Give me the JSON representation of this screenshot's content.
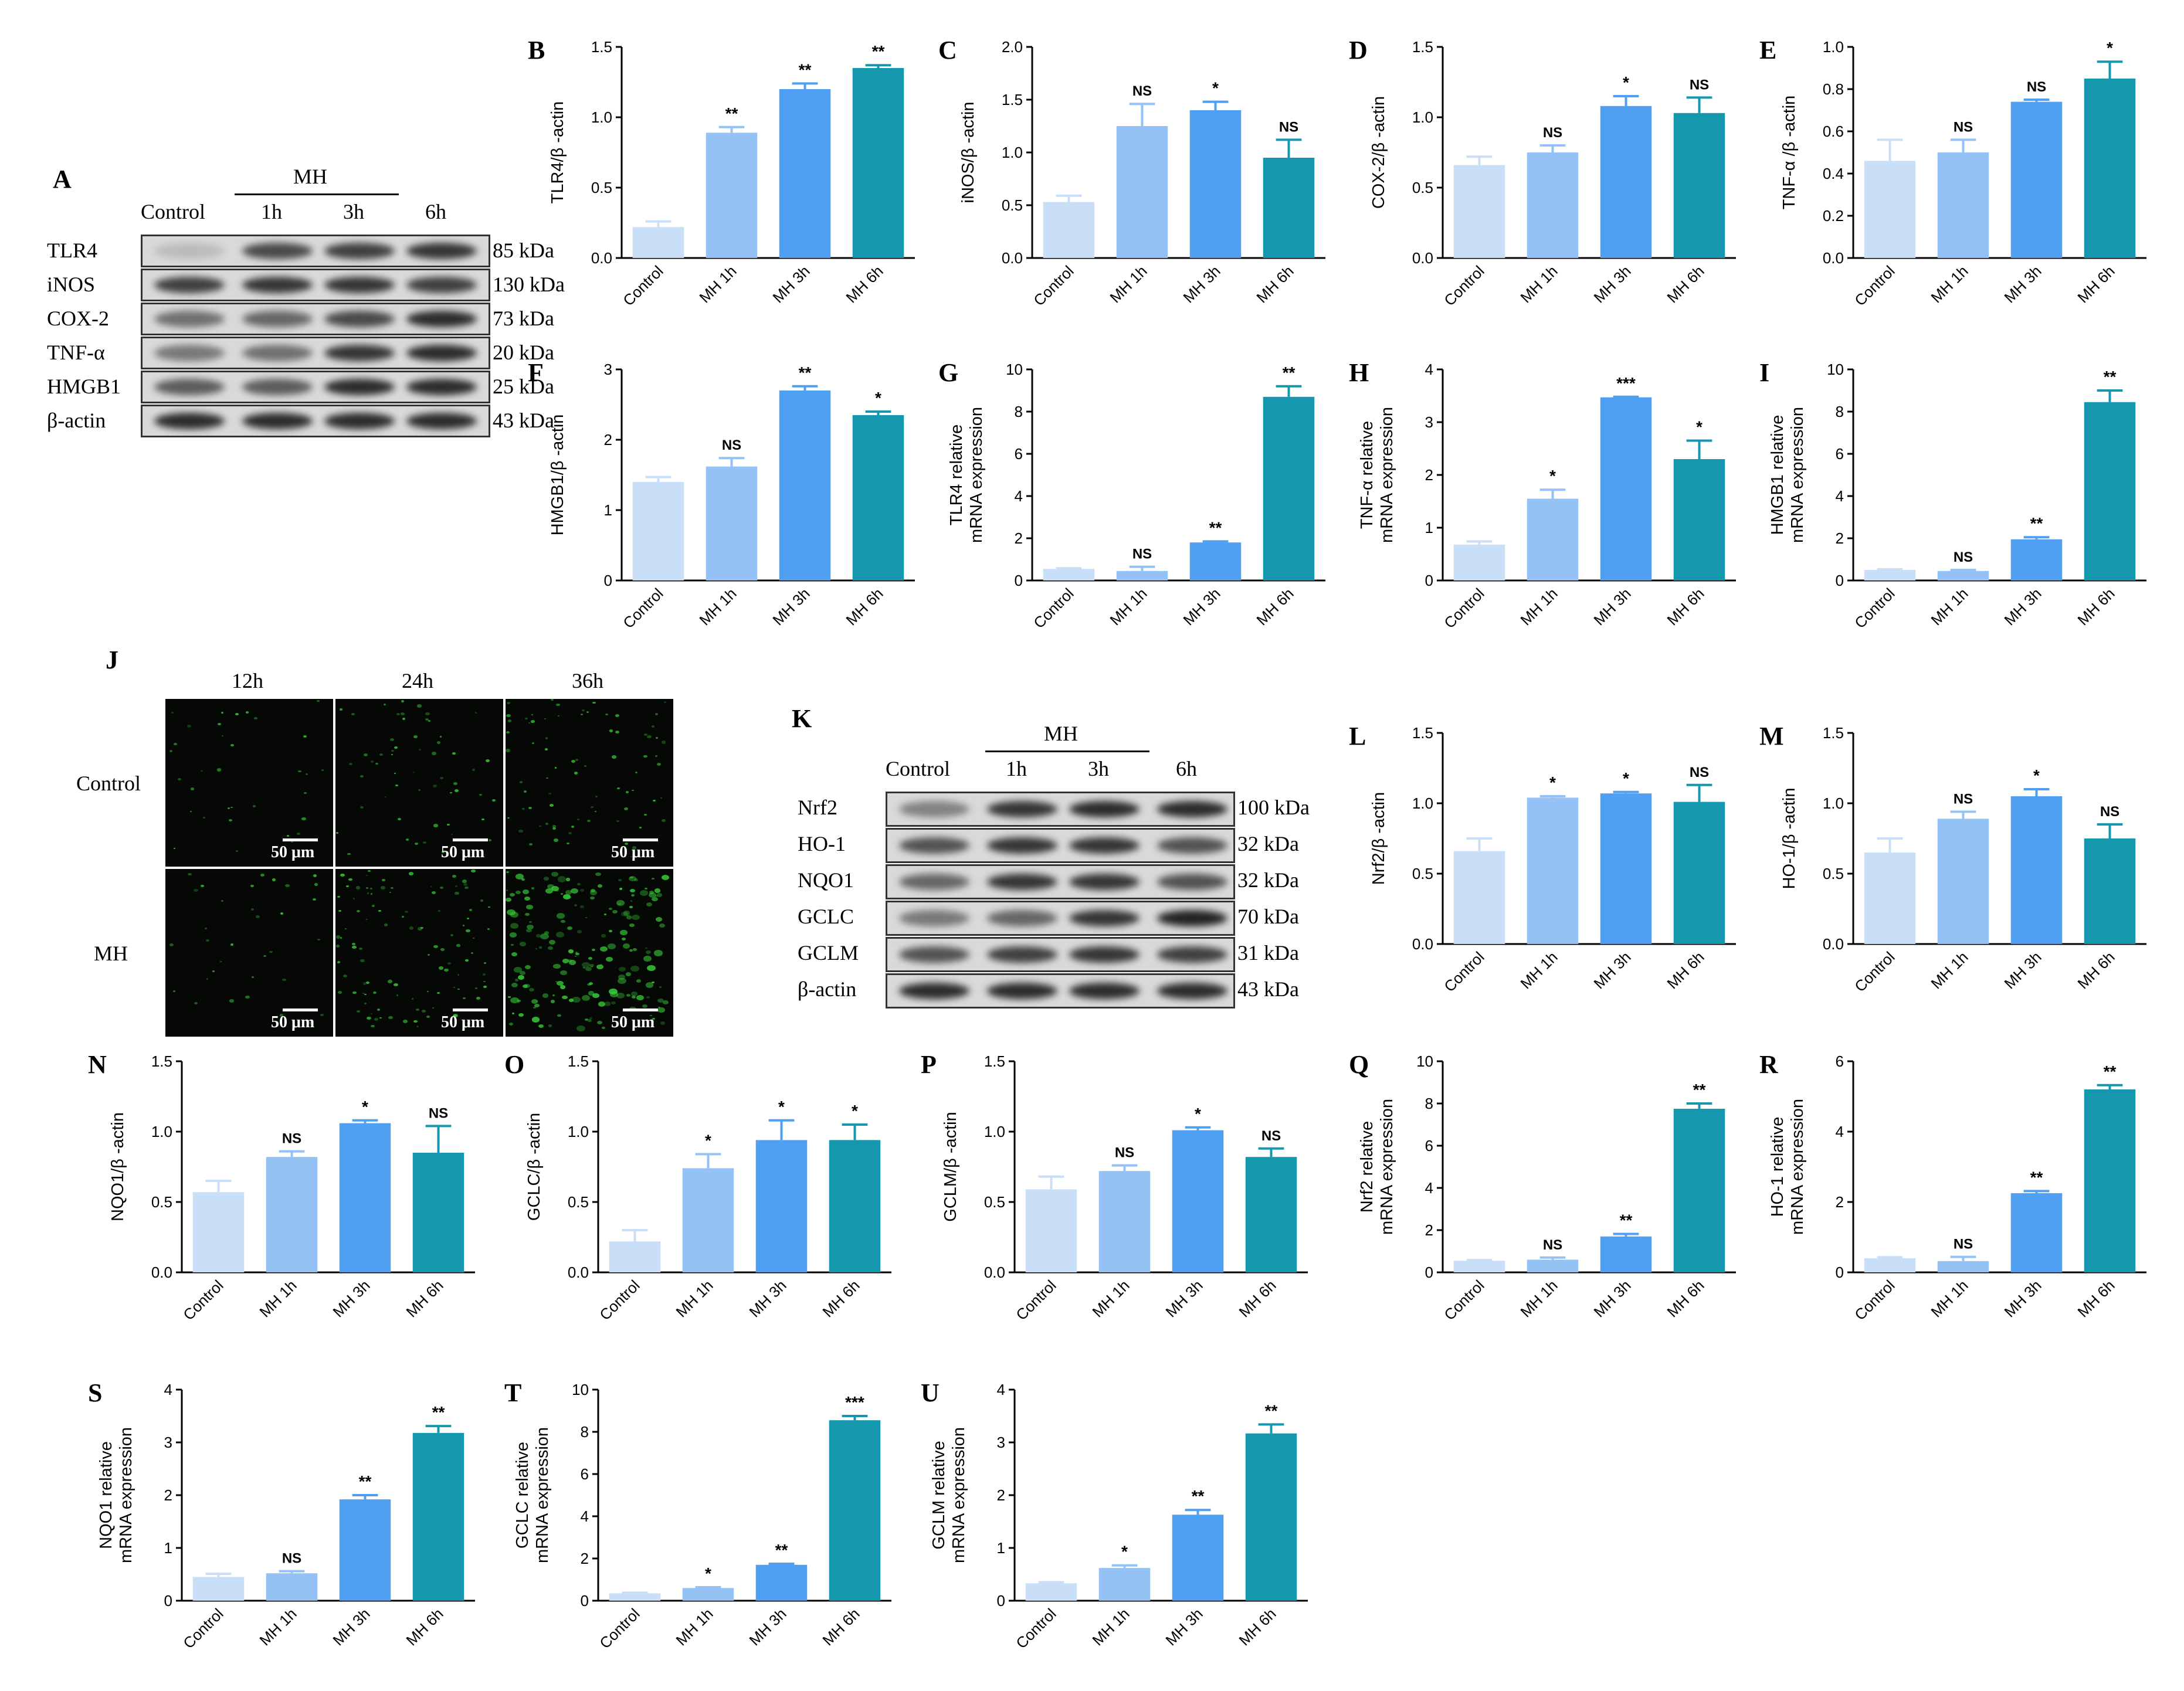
{
  "colors": {
    "control": "#c9dff7",
    "mh1": "#94c2f5",
    "mh3": "#4f9ff2",
    "mh6": "#1597ae"
  },
  "blotA": {
    "label": "A",
    "group_label": "MH",
    "lanes": [
      "Control",
      "1h",
      "3h",
      "6h"
    ],
    "rows": [
      {
        "name": "TLR4",
        "kda": "85 kDa",
        "intensity": [
          0.15,
          0.75,
          0.8,
          0.85
        ]
      },
      {
        "name": "iNOS",
        "kda": "130 kDa",
        "intensity": [
          0.8,
          0.85,
          0.85,
          0.8
        ]
      },
      {
        "name": "COX-2",
        "kda": "73 kDa",
        "intensity": [
          0.55,
          0.6,
          0.75,
          0.9
        ]
      },
      {
        "name": "TNF-α",
        "kda": "20 kDa",
        "intensity": [
          0.5,
          0.55,
          0.85,
          0.9
        ]
      },
      {
        "name": "HMGB1",
        "kda": "25 kDa",
        "intensity": [
          0.65,
          0.65,
          0.9,
          0.9
        ]
      },
      {
        "name": "β-actin",
        "kda": "43 kDa",
        "intensity": [
          0.9,
          0.9,
          0.9,
          0.9
        ]
      }
    ]
  },
  "blotK": {
    "label": "K",
    "group_label": "MH",
    "lanes": [
      "Control",
      "1h",
      "3h",
      "6h"
    ],
    "rows": [
      {
        "name": "Nrf2",
        "kda": "100 kDa",
        "intensity": [
          0.45,
          0.85,
          0.9,
          0.9
        ]
      },
      {
        "name": "HO-1",
        "kda": "32 kDa",
        "intensity": [
          0.7,
          0.85,
          0.85,
          0.7
        ]
      },
      {
        "name": "NQO1",
        "kda": "32 kDa",
        "intensity": [
          0.6,
          0.85,
          0.85,
          0.7
        ]
      },
      {
        "name": "GCLC",
        "kda": "70 kDa",
        "intensity": [
          0.5,
          0.6,
          0.85,
          0.95
        ]
      },
      {
        "name": "GCLM",
        "kda": "31 kDa",
        "intensity": [
          0.7,
          0.8,
          0.85,
          0.8
        ]
      },
      {
        "name": "β-actin",
        "kda": "43 kDa",
        "intensity": [
          0.9,
          0.9,
          0.9,
          0.9
        ]
      }
    ]
  },
  "microJ": {
    "label": "J",
    "columns": [
      "12h",
      "24h",
      "36h"
    ],
    "rows": [
      "Control",
      "MH"
    ],
    "scale": "50 μm",
    "density": [
      [
        0.15,
        0.25,
        0.35
      ],
      [
        0.15,
        0.5,
        0.9
      ]
    ]
  },
  "chart_data": [
    {
      "label": "B",
      "type": "bar",
      "ylabel": [
        "TLR4/β -actin"
      ],
      "ylim": [
        0,
        1.5
      ],
      "ticks": [
        "0.0",
        "0.5",
        "1.0",
        "1.5"
      ],
      "categories": [
        "Control",
        "MH 1h",
        "MH 3h",
        "MH 6h"
      ],
      "values": [
        0.22,
        0.89,
        1.2,
        1.35
      ],
      "errors": [
        0.04,
        0.04,
        0.04,
        0.02
      ],
      "sig": [
        "",
        "**",
        "**",
        "**"
      ]
    },
    {
      "label": "C",
      "type": "bar",
      "ylabel": [
        "iNOS/β -actin"
      ],
      "ylim": [
        0,
        2.0
      ],
      "ticks": [
        "0.0",
        "0.5",
        "1.0",
        "1.5",
        "2.0"
      ],
      "categories": [
        "Control",
        "MH 1h",
        "MH 3h",
        "MH 6h"
      ],
      "values": [
        0.53,
        1.25,
        1.4,
        0.95
      ],
      "errors": [
        0.06,
        0.21,
        0.08,
        0.17
      ],
      "sig": [
        "",
        "NS",
        "*",
        "NS"
      ]
    },
    {
      "label": "D",
      "type": "bar",
      "ylabel": [
        "COX-2/β -actin"
      ],
      "ylim": [
        0,
        1.5
      ],
      "ticks": [
        "0.0",
        "0.5",
        "1.0",
        "1.5"
      ],
      "categories": [
        "Control",
        "MH 1h",
        "MH 3h",
        "MH 6h"
      ],
      "values": [
        0.66,
        0.75,
        1.08,
        1.03
      ],
      "errors": [
        0.06,
        0.05,
        0.07,
        0.11
      ],
      "sig": [
        "",
        "NS",
        "*",
        "NS"
      ]
    },
    {
      "label": "E",
      "type": "bar",
      "ylabel": [
        "TNF-α /β -actin"
      ],
      "ylim": [
        0,
        1.0
      ],
      "ticks": [
        "0.0",
        "0.2",
        "0.4",
        "0.6",
        "0.8",
        "1.0"
      ],
      "categories": [
        "Control",
        "MH 1h",
        "MH 3h",
        "MH 6h"
      ],
      "values": [
        0.46,
        0.5,
        0.74,
        0.85
      ],
      "errors": [
        0.1,
        0.06,
        0.01,
        0.08
      ],
      "sig": [
        "",
        "NS",
        "NS",
        "*"
      ]
    },
    {
      "label": "F",
      "type": "bar",
      "ylabel": [
        "HMGB1/β -actin"
      ],
      "ylim": [
        0,
        3
      ],
      "ticks": [
        "0",
        "1",
        "2",
        "3"
      ],
      "categories": [
        "Control",
        "MH 1h",
        "MH 3h",
        "MH 6h"
      ],
      "values": [
        1.4,
        1.62,
        2.7,
        2.35
      ],
      "errors": [
        0.07,
        0.12,
        0.06,
        0.05
      ],
      "sig": [
        "",
        "NS",
        "**",
        "*"
      ]
    },
    {
      "label": "G",
      "type": "bar",
      "ylabel": [
        "TLR4 relative",
        "mRNA expression"
      ],
      "ylim": [
        0,
        10
      ],
      "ticks": [
        "0",
        "2",
        "4",
        "6",
        "8",
        "10"
      ],
      "categories": [
        "Control",
        "MH 1h",
        "MH 3h",
        "MH 6h"
      ],
      "values": [
        0.55,
        0.45,
        1.8,
        8.7
      ],
      "errors": [
        0.03,
        0.2,
        0.05,
        0.5
      ],
      "sig": [
        "",
        "NS",
        "**",
        "**"
      ]
    },
    {
      "label": "H",
      "type": "bar",
      "ylabel": [
        "TNF-α relative",
        "mRNA expression"
      ],
      "ylim": [
        0,
        4
      ],
      "ticks": [
        "0",
        "1",
        "2",
        "3",
        "4"
      ],
      "categories": [
        "Control",
        "MH 1h",
        "MH 3h",
        "MH 6h"
      ],
      "values": [
        0.68,
        1.55,
        3.47,
        2.3
      ],
      "errors": [
        0.06,
        0.17,
        0.01,
        0.35
      ],
      "sig": [
        "",
        "*",
        "***",
        "*"
      ]
    },
    {
      "label": "I",
      "type": "bar",
      "ylabel": [
        "HMGB1 relative",
        "mRNA expression"
      ],
      "ylim": [
        0,
        10
      ],
      "ticks": [
        "0",
        "2",
        "4",
        "6",
        "8",
        "10"
      ],
      "categories": [
        "Control",
        "MH 1h",
        "MH 3h",
        "MH 6h"
      ],
      "values": [
        0.5,
        0.45,
        1.95,
        8.45
      ],
      "errors": [
        0.03,
        0.05,
        0.1,
        0.55
      ],
      "sig": [
        "",
        "NS",
        "**",
        "**"
      ]
    },
    {
      "label": "L",
      "type": "bar",
      "ylabel": [
        "Nrf2/β -actin"
      ],
      "ylim": [
        0,
        1.5
      ],
      "ticks": [
        "0.0",
        "0.5",
        "1.0",
        "1.5"
      ],
      "categories": [
        "Control",
        "MH 1h",
        "MH 3h",
        "MH 6h"
      ],
      "values": [
        0.66,
        1.04,
        1.07,
        1.01
      ],
      "errors": [
        0.09,
        0.01,
        0.01,
        0.12
      ],
      "sig": [
        "",
        "*",
        "*",
        "NS"
      ]
    },
    {
      "label": "M",
      "type": "bar",
      "ylabel": [
        "HO-1/β -actin"
      ],
      "ylim": [
        0,
        1.5
      ],
      "ticks": [
        "0.0",
        "0.5",
        "1.0",
        "1.5"
      ],
      "categories": [
        "Control",
        "MH 1h",
        "MH 3h",
        "MH 6h"
      ],
      "values": [
        0.65,
        0.89,
        1.05,
        0.75
      ],
      "errors": [
        0.1,
        0.05,
        0.05,
        0.1
      ],
      "sig": [
        "",
        "NS",
        "*",
        "NS"
      ]
    },
    {
      "label": "N",
      "type": "bar",
      "ylabel": [
        "NQO1/β -actin"
      ],
      "ylim": [
        0,
        1.5
      ],
      "ticks": [
        "0.0",
        "0.5",
        "1.0",
        "1.5"
      ],
      "categories": [
        "Control",
        "MH 1h",
        "MH 3h",
        "MH 6h"
      ],
      "values": [
        0.57,
        0.82,
        1.06,
        0.85
      ],
      "errors": [
        0.08,
        0.04,
        0.02,
        0.19
      ],
      "sig": [
        "",
        "NS",
        "*",
        "NS"
      ]
    },
    {
      "label": "O",
      "type": "bar",
      "ylabel": [
        "GCLC/β -actin"
      ],
      "ylim": [
        0,
        1.5
      ],
      "ticks": [
        "0.0",
        "0.5",
        "1.0",
        "1.5"
      ],
      "categories": [
        "Control",
        "MH 1h",
        "MH 3h",
        "MH 6h"
      ],
      "values": [
        0.22,
        0.74,
        0.94,
        0.94
      ],
      "errors": [
        0.08,
        0.1,
        0.14,
        0.11
      ],
      "sig": [
        "",
        "*",
        "*",
        "*"
      ]
    },
    {
      "label": "P",
      "type": "bar",
      "ylabel": [
        "GCLM/β -actin"
      ],
      "ylim": [
        0,
        1.5
      ],
      "ticks": [
        "0.0",
        "0.5",
        "1.0",
        "1.5"
      ],
      "categories": [
        "Control",
        "MH 1h",
        "MH 3h",
        "MH 6h"
      ],
      "values": [
        0.59,
        0.72,
        1.01,
        0.82
      ],
      "errors": [
        0.09,
        0.04,
        0.02,
        0.06
      ],
      "sig": [
        "",
        "NS",
        "*",
        "NS"
      ]
    },
    {
      "label": "Q",
      "type": "bar",
      "ylabel": [
        "Nrf2 relative",
        "mRNA expression"
      ],
      "ylim": [
        0,
        10
      ],
      "ticks": [
        "0",
        "2",
        "4",
        "6",
        "8",
        "10"
      ],
      "categories": [
        "Control",
        "MH 1h",
        "MH 3h",
        "MH 6h"
      ],
      "values": [
        0.55,
        0.6,
        1.7,
        7.75
      ],
      "errors": [
        0.03,
        0.1,
        0.12,
        0.25
      ],
      "sig": [
        "",
        "NS",
        "**",
        "**"
      ]
    },
    {
      "label": "R",
      "type": "bar",
      "ylabel": [
        "HO-1 relative",
        "mRNA expression"
      ],
      "ylim": [
        0,
        6
      ],
      "ticks": [
        "0",
        "2",
        "4",
        "6"
      ],
      "categories": [
        "Control",
        "MH 1h",
        "MH 3h",
        "MH 6h"
      ],
      "values": [
        0.4,
        0.32,
        2.25,
        5.2
      ],
      "errors": [
        0.03,
        0.12,
        0.06,
        0.12
      ],
      "sig": [
        "",
        "NS",
        "**",
        "**"
      ]
    },
    {
      "label": "S",
      "type": "bar",
      "ylabel": [
        "NQO1 relative",
        "mRNA expression"
      ],
      "ylim": [
        0,
        4
      ],
      "ticks": [
        "0",
        "1",
        "2",
        "3",
        "4"
      ],
      "categories": [
        "Control",
        "MH 1h",
        "MH 3h",
        "MH 6h"
      ],
      "values": [
        0.45,
        0.52,
        1.92,
        3.18
      ],
      "errors": [
        0.06,
        0.04,
        0.08,
        0.13
      ],
      "sig": [
        "",
        "NS",
        "**",
        "**"
      ]
    },
    {
      "label": "T",
      "type": "bar",
      "ylabel": [
        "GCLC relative",
        "mRNA expression"
      ],
      "ylim": [
        0,
        10
      ],
      "ticks": [
        "0",
        "2",
        "4",
        "6",
        "8",
        "10"
      ],
      "categories": [
        "Control",
        "MH 1h",
        "MH 3h",
        "MH 6h"
      ],
      "values": [
        0.35,
        0.6,
        1.7,
        8.55
      ],
      "errors": [
        0.03,
        0.04,
        0.05,
        0.2
      ],
      "sig": [
        "",
        "*",
        "**",
        "***"
      ]
    },
    {
      "label": "U",
      "type": "bar",
      "ylabel": [
        "GCLM relative",
        "mRNA expression"
      ],
      "ylim": [
        0,
        4
      ],
      "ticks": [
        "0",
        "1",
        "2",
        "3",
        "4"
      ],
      "categories": [
        "Control",
        "MH 1h",
        "MH 3h",
        "MH 6h"
      ],
      "values": [
        0.33,
        0.62,
        1.63,
        3.17
      ],
      "errors": [
        0.02,
        0.05,
        0.09,
        0.17
      ],
      "sig": [
        "",
        "*",
        "**",
        "**"
      ]
    }
  ]
}
